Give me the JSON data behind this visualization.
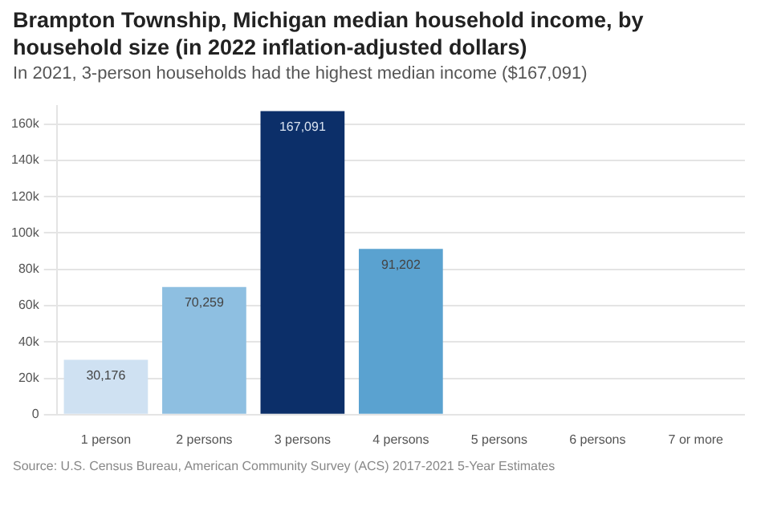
{
  "chart_data": {
    "type": "bar",
    "title": "Brampton Township, Michigan median household income, by household size (in 2022 inflation-adjusted dollars)",
    "subtitle": "In 2021, 3-person households had the highest median income ($167,091)",
    "categories": [
      "1 person",
      "2 persons",
      "3 persons",
      "4 persons",
      "5 persons",
      "6 persons",
      "7 or more"
    ],
    "values": [
      30176,
      70259,
      167091,
      91202,
      null,
      null,
      null
    ],
    "colors": [
      "#cfe1f2",
      "#8ebfe1",
      "#0c2f69",
      "#5aa2d0",
      "#5aa2d0",
      "#5aa2d0",
      "#5aa2d0"
    ],
    "value_labels": [
      "30,176",
      "70,259",
      "167,091",
      "91,202",
      null,
      null,
      null
    ],
    "ylim": [
      0,
      170000
    ],
    "yticks": [
      0,
      {
        "value": 20000,
        "label": "20k"
      },
      {
        "value": 40000,
        "label": "40k"
      },
      {
        "value": 60000,
        "label": "60k"
      },
      {
        "value": 80000,
        "label": "80k"
      },
      {
        "value": 100000,
        "label": "100k"
      },
      {
        "value": 120000,
        "label": "120k"
      },
      {
        "value": 140000,
        "label": "140k"
      },
      {
        "value": 160000,
        "label": "160k"
      }
    ],
    "grid": "y",
    "legend": false,
    "annotations": [
      "Source: U.S. Census Bureau, American Community Survey (ACS) 2017-2021 5-Year Estimates"
    ]
  }
}
